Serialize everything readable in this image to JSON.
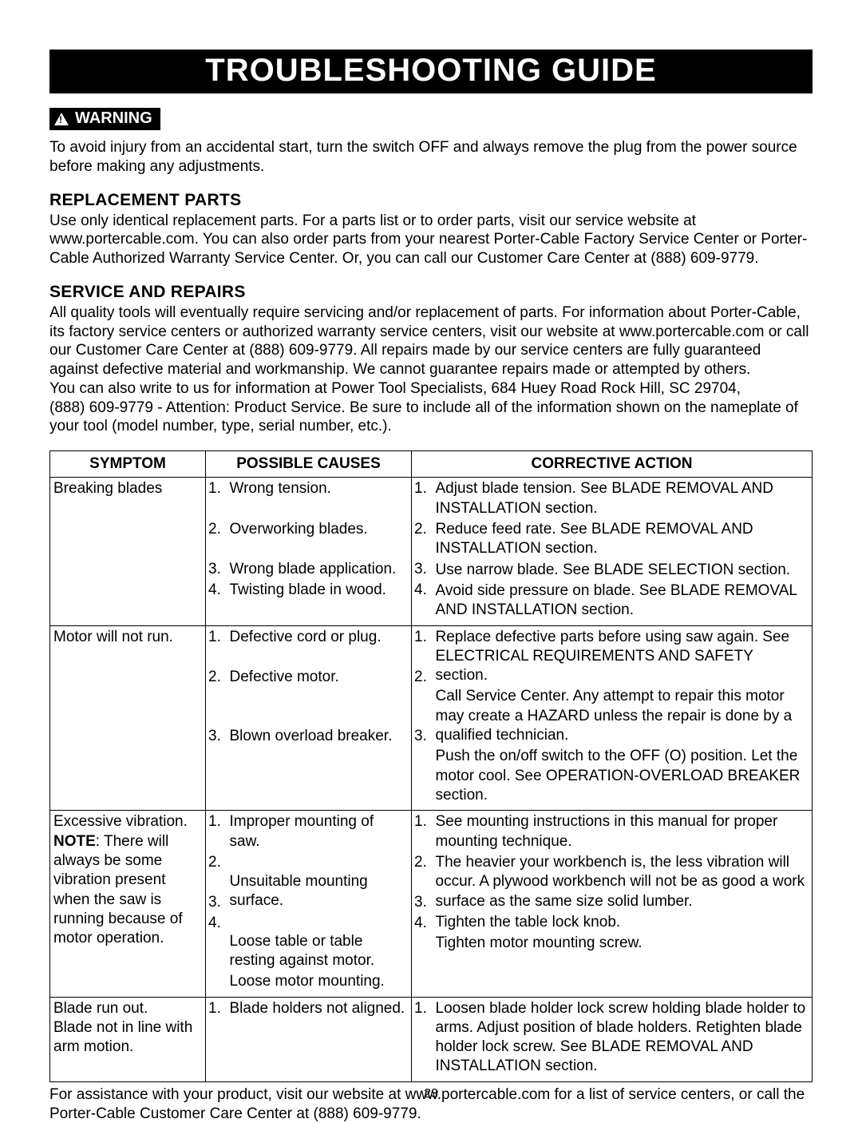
{
  "title": "TROUBLESHOOTING GUIDE",
  "warning_label": "WARNING",
  "warning_text": "To avoid injury from an accidental start, turn the switch OFF and always remove the plug from the power source before making any adjustments.",
  "replacement_heading": "REPLACEMENT PARTS",
  "replacement_text": "Use only identical replacement parts. For a parts list or to order parts, visit our service website at www.portercable.com. You can also order parts from your nearest Porter-Cable Factory Service Center or Porter-Cable Authorized Warranty Service Center. Or, you can call our Customer Care Center at (888) 609-9779.",
  "service_heading": "SERVICE AND REPAIRS",
  "service_text": "All quality tools will eventually require servicing and/or replacement of parts. For information about Porter-Cable, its factory service centers or authorized warranty service centers, visit our website at www.portercable.com or call our Customer Care Center at (888) 609-9779. All repairs made by our service centers are fully guaranteed against defective material and workmanship. We cannot guarantee repairs made or attempted by others.\nYou can also write to us for information at Power Tool Specialists, 684 Huey Road Rock Hill, SC 29704,\n(888) 609-9779 - Attention: Product Service. Be sure to include all of the information shown on the nameplate of your tool (model number, type, serial number, etc.).",
  "table": {
    "headers": {
      "symptom": "SYMPTOM",
      "causes": "POSSIBLE CAUSES",
      "action": "CORRECTIVE ACTION"
    },
    "rows": [
      {
        "symptom_html": "Breaking blades",
        "items": [
          {
            "n": "1.",
            "cause": "Wrong tension.",
            "action": "Adjust blade tension. See BLADE REMOVAL AND INSTALLATION section."
          },
          {
            "n": "2.",
            "cause": "Overworking blades.",
            "action": "Reduce feed rate. See BLADE REMOVAL AND INSTALLATION section."
          },
          {
            "n": "3.",
            "cause": "Wrong blade application.",
            "action": "Use narrow blade. See BLADE SELECTION section."
          },
          {
            "n": "4.",
            "cause": "Twisting blade in wood.",
            "action": "Avoid side pressure on blade. See BLADE REMOVAL AND INSTALLATION section."
          }
        ]
      },
      {
        "symptom_html": "Motor will not run.",
        "items": [
          {
            "n": "1.",
            "cause": "Defective cord or plug.",
            "action": "Replace defective parts before using saw again. See ELECTRICAL REQUIREMENTS AND SAFETY section."
          },
          {
            "n": "2.",
            "cause": "Defective motor.",
            "action": "Call Service Center. Any attempt to repair this motor may create a HAZARD unless the repair is done by a qualified technician."
          },
          {
            "n": "3.",
            "cause": "Blown overload breaker.",
            "action": "Push the on/off switch to the OFF (O) position. Let the motor cool. See OPERATION-OVERLOAD BREAKER section."
          }
        ]
      },
      {
        "symptom_html": "Excessive vibration.\n<b>NOTE</b>: There will always be some vibration present when the saw is running because of motor operation.",
        "items": [
          {
            "n": "1.",
            "cause": "Improper mounting of saw.",
            "action": "See mounting instructions in this manual for proper mounting technique."
          },
          {
            "n": "2.",
            "cause": "Unsuitable mounting surface.",
            "action": "The heavier your workbench is, the less vibration will occur. A plywood workbench will not be as good a work surface as the same size solid lumber."
          },
          {
            "n": "3.",
            "cause": "Loose table or table resting against motor.",
            "action": "Tighten the table lock knob."
          },
          {
            "n": "4.",
            "cause": "Loose motor mounting.",
            "action": "Tighten motor mounting screw."
          }
        ]
      },
      {
        "symptom_html": "Blade run out.\nBlade not in line with arm motion.",
        "items": [
          {
            "n": "1.",
            "cause": "Blade holders not aligned.",
            "action": "Loosen blade holder lock screw holding blade holder to arms. Adjust position of blade holders. Retighten blade holder lock screw. See BLADE REMOVAL AND INSTALLATION section."
          }
        ]
      }
    ]
  },
  "footer_text": "For assistance with your product, visit our website at www.portercable.com for a list of service centers, or call the Porter-Cable Customer Care Center at (888) 609-9779.",
  "page_number": "23"
}
